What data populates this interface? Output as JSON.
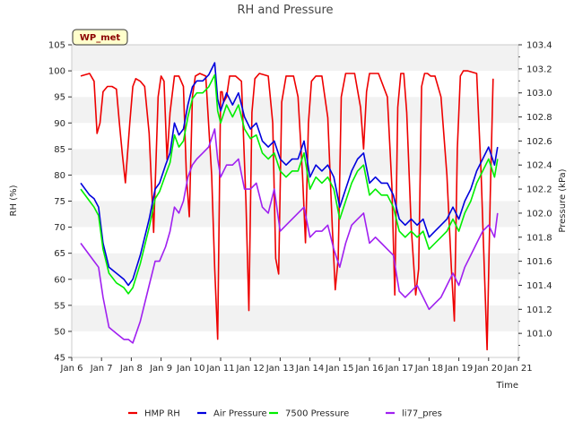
{
  "chart_data": {
    "type": "line",
    "title": "RH and Pressure",
    "xlabel": "Time",
    "ylabel": "RH (%)",
    "y2label": "Pressure (kPa)",
    "badge": "WP_met",
    "xlim": [
      6,
      21
    ],
    "ylim": [
      45,
      105
    ],
    "y2lim": [
      100.8,
      103.4
    ],
    "x_ticks": [
      6,
      7,
      8,
      9,
      10,
      11,
      12,
      13,
      14,
      15,
      16,
      17,
      18,
      19,
      20,
      21
    ],
    "x_tick_labels": [
      "Jan 6",
      "Jan 7",
      "Jan 8",
      "Jan 9",
      "Jan 10",
      "Jan 11",
      "Jan 12",
      "Jan 13",
      "Jan 14",
      "Jan 15",
      "Jan 16",
      "Jan 17",
      "Jan 18",
      "Jan 19",
      "Jan 20",
      "Jan 21"
    ],
    "y_ticks": [
      45,
      50,
      55,
      60,
      65,
      70,
      75,
      80,
      85,
      90,
      95,
      100,
      105
    ],
    "y2_ticks": [
      101.0,
      101.2,
      101.4,
      101.6,
      101.8,
      102.0,
      102.2,
      102.4,
      102.6,
      102.8,
      103.0,
      103.2,
      103.4
    ],
    "y2_tick_labels": [
      "101.0",
      "101.2",
      "101.4",
      "101.6",
      "101.8",
      "102.0",
      "102.2",
      "102.4",
      "102.6",
      "102.8",
      "103.0",
      "103.2",
      "103.4"
    ],
    "grid": "horizontal-bands",
    "legend_position": "bottom",
    "series": [
      {
        "name": "HMP RH",
        "color": "#ee0000",
        "axis": "left",
        "x": [
          6.3,
          6.6,
          6.75,
          6.85,
          6.95,
          7.05,
          7.2,
          7.35,
          7.5,
          7.6,
          7.7,
          7.8,
          7.95,
          8.05,
          8.15,
          8.3,
          8.45,
          8.6,
          8.75,
          8.9,
          9.0,
          9.1,
          9.2,
          9.3,
          9.45,
          9.6,
          9.75,
          9.85,
          9.95,
          10.05,
          10.15,
          10.3,
          10.5,
          10.7,
          10.8,
          10.9,
          11.0,
          11.05,
          11.1,
          11.2,
          11.3,
          11.5,
          11.7,
          11.85,
          11.95,
          12.05,
          12.15,
          12.3,
          12.6,
          12.75,
          12.85,
          12.95,
          13.05,
          13.2,
          13.45,
          13.6,
          13.75,
          13.85,
          13.95,
          14.05,
          14.2,
          14.4,
          14.6,
          14.75,
          14.85,
          14.95,
          15.05,
          15.2,
          15.5,
          15.7,
          15.8,
          15.9,
          16.0,
          16.1,
          16.3,
          16.6,
          16.75,
          16.85,
          16.95,
          17.05,
          17.15,
          17.25,
          17.4,
          17.55,
          17.65,
          17.75,
          17.85,
          17.95,
          18.05,
          18.2,
          18.4,
          18.6,
          18.75,
          18.85,
          18.95,
          19.05,
          19.15,
          19.3,
          19.6,
          19.75,
          19.85,
          19.95,
          20.05,
          20.15
        ],
        "y": [
          99,
          99.5,
          98,
          88,
          90,
          96,
          97,
          97,
          96.5,
          90,
          84,
          78.5,
          90,
          97,
          98.5,
          98,
          97,
          88,
          69,
          95,
          99,
          98,
          83,
          92,
          99,
          99,
          97,
          80,
          72,
          95,
          99,
          99.5,
          99,
          80,
          62,
          48.5,
          96,
          96,
          94,
          95,
          99,
          99,
          98,
          75,
          54,
          92,
          98.5,
          99.5,
          99,
          90,
          64,
          61,
          94,
          99,
          99,
          95,
          80,
          67,
          90,
          98,
          99,
          99,
          91,
          70,
          58,
          64,
          95,
          99.5,
          99.5,
          93,
          85,
          96,
          99.5,
          99.5,
          99.5,
          95,
          78,
          57,
          93,
          99.5,
          99.5,
          92,
          70,
          57,
          62,
          97,
          99.5,
          99.5,
          99,
          99,
          95,
          80,
          62,
          52,
          85,
          99,
          100,
          100,
          99.5,
          80,
          63,
          46.5,
          75,
          98.5
        ]
      },
      {
        "name": "Air Pressure",
        "color": "#0000dd",
        "axis": "right",
        "x": [
          6.3,
          6.6,
          6.75,
          6.9,
          7.05,
          7.25,
          7.5,
          7.75,
          7.9,
          8.05,
          8.3,
          8.6,
          8.8,
          8.95,
          9.15,
          9.3,
          9.45,
          9.6,
          9.75,
          9.9,
          10.05,
          10.2,
          10.4,
          10.6,
          10.8,
          10.9,
          11.0,
          11.2,
          11.4,
          11.6,
          11.8,
          12.0,
          12.2,
          12.4,
          12.6,
          12.8,
          13.0,
          13.2,
          13.4,
          13.6,
          13.8,
          14.0,
          14.2,
          14.4,
          14.6,
          14.8,
          15.0,
          15.2,
          15.4,
          15.6,
          15.8,
          16.0,
          16.2,
          16.4,
          16.6,
          16.8,
          17.0,
          17.2,
          17.4,
          17.6,
          17.8,
          18.0,
          18.2,
          18.4,
          18.6,
          18.8,
          19.0,
          19.2,
          19.4,
          19.6,
          19.8,
          20.0,
          20.2,
          20.3
        ],
        "y": [
          102.25,
          102.15,
          102.12,
          102.05,
          101.75,
          101.55,
          101.5,
          101.45,
          101.4,
          101.45,
          101.65,
          101.95,
          102.2,
          102.25,
          102.4,
          102.5,
          102.75,
          102.65,
          102.7,
          102.9,
          103.05,
          103.1,
          103.1,
          103.15,
          103.25,
          102.95,
          102.85,
          103.0,
          102.9,
          103.0,
          102.8,
          102.7,
          102.75,
          102.6,
          102.55,
          102.6,
          102.45,
          102.4,
          102.45,
          102.45,
          102.6,
          102.3,
          102.4,
          102.35,
          102.4,
          102.3,
          102.05,
          102.2,
          102.35,
          102.45,
          102.5,
          102.25,
          102.3,
          102.25,
          102.25,
          102.15,
          101.95,
          101.9,
          101.95,
          101.9,
          101.95,
          101.8,
          101.85,
          101.9,
          101.95,
          102.05,
          101.95,
          102.1,
          102.2,
          102.35,
          102.45,
          102.55,
          102.4,
          102.55
        ]
      },
      {
        "name": "7500 Pressure",
        "color": "#00ee00",
        "axis": "right",
        "x": [
          6.3,
          6.6,
          6.75,
          6.9,
          7.05,
          7.25,
          7.5,
          7.75,
          7.9,
          8.05,
          8.3,
          8.6,
          8.8,
          8.95,
          9.15,
          9.3,
          9.45,
          9.6,
          9.75,
          9.9,
          10.05,
          10.2,
          10.4,
          10.6,
          10.8,
          10.9,
          11.0,
          11.2,
          11.4,
          11.6,
          11.8,
          12.0,
          12.2,
          12.4,
          12.6,
          12.8,
          13.0,
          13.2,
          13.4,
          13.6,
          13.8,
          14.0,
          14.2,
          14.4,
          14.6,
          14.8,
          15.0,
          15.2,
          15.4,
          15.6,
          15.8,
          16.0,
          16.2,
          16.4,
          16.6,
          16.8,
          17.0,
          17.2,
          17.4,
          17.6,
          17.8,
          18.0,
          18.2,
          18.4,
          18.6,
          18.8,
          19.0,
          19.2,
          19.4,
          19.6,
          19.8,
          20.0,
          20.2,
          20.3
        ],
        "y": [
          102.2,
          102.1,
          102.05,
          101.98,
          101.7,
          101.5,
          101.42,
          101.38,
          101.33,
          101.38,
          101.58,
          101.88,
          102.12,
          102.18,
          102.32,
          102.42,
          102.65,
          102.55,
          102.6,
          102.8,
          102.95,
          103.0,
          103.0,
          103.05,
          103.15,
          102.85,
          102.75,
          102.9,
          102.8,
          102.9,
          102.7,
          102.62,
          102.65,
          102.5,
          102.45,
          102.5,
          102.35,
          102.3,
          102.35,
          102.35,
          102.5,
          102.2,
          102.3,
          102.25,
          102.3,
          102.2,
          101.95,
          102.1,
          102.25,
          102.35,
          102.4,
          102.15,
          102.2,
          102.15,
          102.15,
          102.05,
          101.85,
          101.8,
          101.85,
          101.8,
          101.85,
          101.7,
          101.75,
          101.8,
          101.85,
          101.95,
          101.85,
          102.0,
          102.1,
          102.25,
          102.35,
          102.45,
          102.3,
          102.45
        ]
      },
      {
        "name": "li77_pres",
        "color": "#a020f0",
        "axis": "right",
        "x": [
          6.3,
          6.6,
          6.75,
          6.9,
          7.05,
          7.25,
          7.5,
          7.75,
          7.9,
          8.05,
          8.3,
          8.6,
          8.8,
          8.95,
          9.15,
          9.3,
          9.45,
          9.6,
          9.75,
          9.9,
          10.05,
          10.2,
          10.4,
          10.6,
          10.8,
          10.9,
          11.0,
          11.2,
          11.4,
          11.6,
          11.8,
          12.0,
          12.2,
          12.4,
          12.6,
          12.8,
          13.0,
          13.2,
          13.4,
          13.6,
          13.8,
          14.0,
          14.2,
          14.4,
          14.6,
          14.8,
          15.0,
          15.2,
          15.4,
          15.6,
          15.8,
          16.0,
          16.2,
          16.4,
          16.6,
          16.8,
          17.0,
          17.2,
          17.4,
          17.6,
          17.8,
          18.0,
          18.2,
          18.4,
          18.6,
          18.8,
          19.0,
          19.2,
          19.4,
          19.6,
          19.8,
          20.0,
          20.2,
          20.3
        ],
        "y": [
          101.75,
          101.65,
          101.6,
          101.55,
          101.3,
          101.05,
          101.0,
          100.95,
          100.95,
          100.92,
          101.1,
          101.4,
          101.6,
          101.6,
          101.72,
          101.85,
          102.05,
          102.0,
          102.1,
          102.3,
          102.4,
          102.45,
          102.5,
          102.55,
          102.7,
          102.45,
          102.3,
          102.4,
          102.4,
          102.45,
          102.2,
          102.2,
          102.25,
          102.05,
          102.0,
          102.2,
          101.85,
          101.9,
          101.95,
          102.0,
          102.05,
          101.8,
          101.85,
          101.85,
          101.9,
          101.7,
          101.55,
          101.75,
          101.9,
          101.95,
          102.0,
          101.75,
          101.8,
          101.75,
          101.7,
          101.65,
          101.35,
          101.3,
          101.35,
          101.4,
          101.3,
          101.2,
          101.25,
          101.3,
          101.4,
          101.5,
          101.4,
          101.55,
          101.65,
          101.75,
          101.85,
          101.9,
          101.8,
          102.0
        ]
      }
    ]
  }
}
